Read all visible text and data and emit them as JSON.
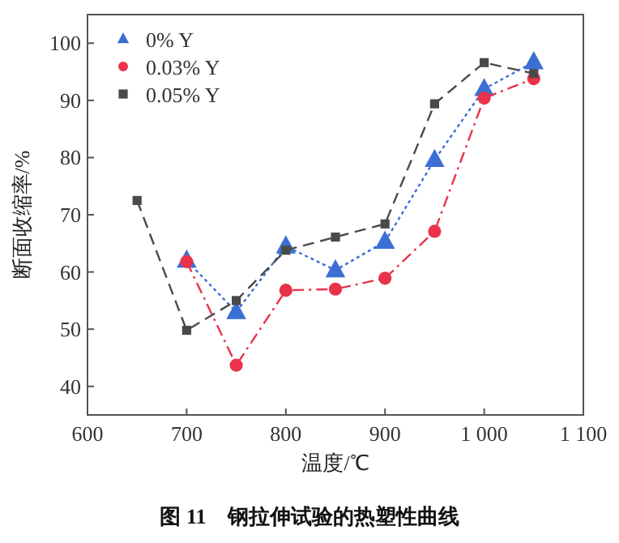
{
  "chart_data": {
    "type": "line",
    "xlabel": "温度/℃",
    "ylabel": "断面收缩率/%",
    "annotations": [
      "图 11　钢拉伸试验的热塑性曲线"
    ],
    "xlim": [
      600,
      1100
    ],
    "xticks": [
      600,
      700,
      800,
      900,
      {
        "value": 1000,
        "label": "1 000"
      },
      {
        "value": 1100,
        "label": "1 100"
      }
    ],
    "ylim": [
      35,
      105
    ],
    "yticks": [
      40,
      50,
      60,
      70,
      80,
      90,
      100
    ],
    "grid": false,
    "legend": "top left",
    "series": [
      {
        "name": "0% Y",
        "color": "#3b6fd4",
        "marker": "triangle",
        "line_style": "dotted",
        "x": [
          700,
          750,
          800,
          850,
          900,
          950,
          1000,
          1050
        ],
        "values": [
          62,
          53,
          64.5,
          60.3,
          65.3,
          79.6,
          92,
          96.7
        ]
      },
      {
        "name": "0.03% Y",
        "color": "#e8334a",
        "marker": "circle",
        "line_style": "dashdot",
        "x": [
          700,
          750,
          800,
          850,
          900,
          950,
          1000,
          1050
        ],
        "values": [
          61.8,
          43.7,
          56.8,
          57,
          58.9,
          67.1,
          90.4,
          93.8
        ]
      },
      {
        "name": "0.05% Y",
        "color": "#4a4a4a",
        "marker": "square",
        "line_style": "dashed",
        "x": [
          650,
          700,
          750,
          800,
          850,
          900,
          950,
          1000,
          1050
        ],
        "values": [
          72.5,
          49.8,
          55,
          63.8,
          66.1,
          68.4,
          89.4,
          96.6,
          94.7
        ]
      }
    ]
  }
}
